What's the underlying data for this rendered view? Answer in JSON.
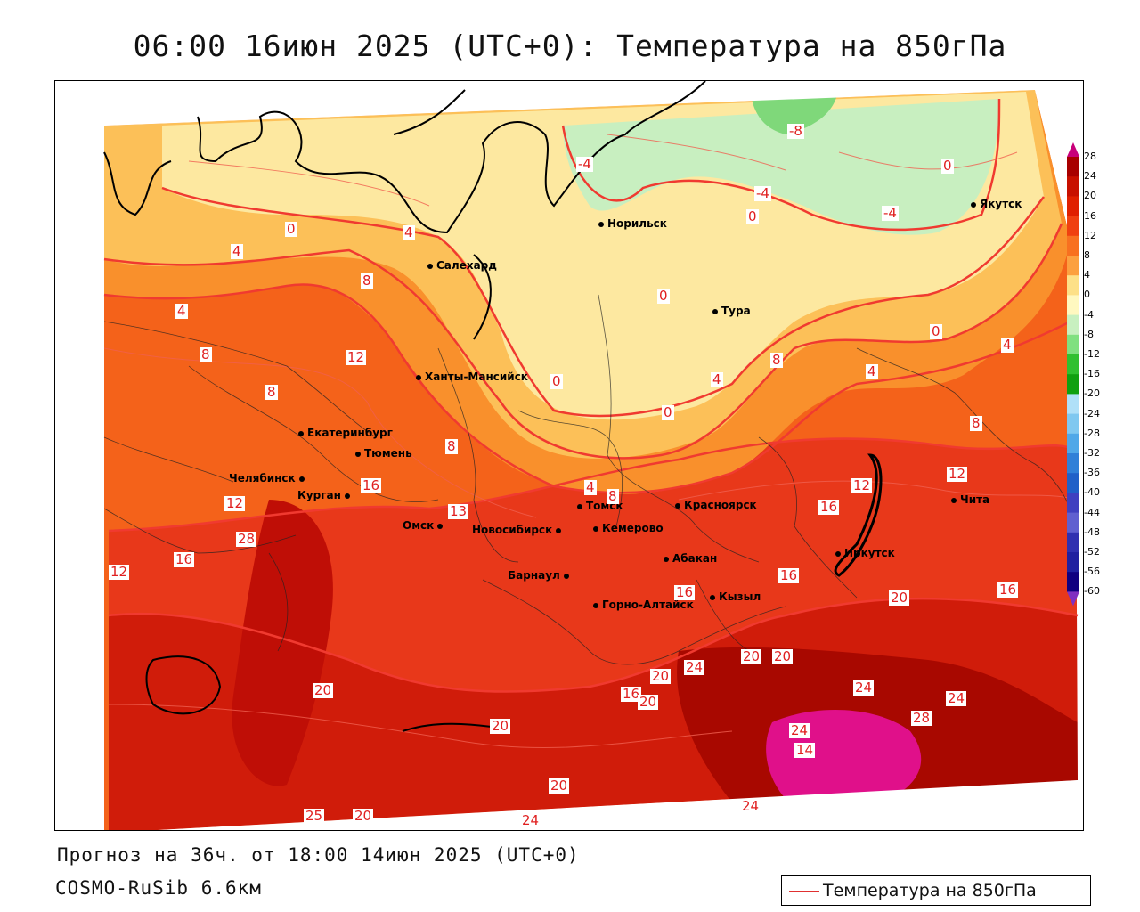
{
  "title": "06:00 16июн 2025 (UTC+0): Температура на 850гПа",
  "forecast_line": "Прогноз на 36ч. от 18:00 14июн 2025 (UTC+0)",
  "model_line": "COSMO-RuSib 6.6км",
  "legend": {
    "label": "Температура на 850гПа",
    "line_color": "#e03030"
  },
  "colorbar": {
    "labels": [
      "28",
      "24",
      "20",
      "16",
      "12",
      "8",
      "4",
      "0",
      "-4",
      "-8",
      "-12",
      "-16",
      "-20",
      "-24",
      "-28",
      "-32",
      "-36",
      "-40",
      "-44",
      "-48",
      "-52",
      "-56",
      "-60"
    ],
    "colors": [
      "#c8007a",
      "#a80000",
      "#c81000",
      "#e02000",
      "#f04010",
      "#f87020",
      "#fca040",
      "#fde088",
      "#fff8c0",
      "#c8f0c0",
      "#80e080",
      "#30c030",
      "#10a010",
      "#b0e0f8",
      "#80c8f0",
      "#50a8e8",
      "#3080d8",
      "#2060c8",
      "#4040c0",
      "#6060d0",
      "#3030b0",
      "#2020a0",
      "#100080"
    ]
  },
  "cities": [
    {
      "name": "Норильск"
    },
    {
      "name": "Якутск"
    },
    {
      "name": "Салехард"
    },
    {
      "name": "Тура"
    },
    {
      "name": "Ханты-Мансийск"
    },
    {
      "name": "Екатеринбург"
    },
    {
      "name": "Тюмень"
    },
    {
      "name": "Челябинск"
    },
    {
      "name": "Курган"
    },
    {
      "name": "Омск"
    },
    {
      "name": "Новосибирск"
    },
    {
      "name": "Томск"
    },
    {
      "name": "Кемерово"
    },
    {
      "name": "Красноярск"
    },
    {
      "name": "Барнаул"
    },
    {
      "name": "Абакан"
    },
    {
      "name": "Горно-Алтайск"
    },
    {
      "name": "Кызыл"
    },
    {
      "name": "Иркутск"
    },
    {
      "name": "Чита"
    }
  ],
  "contour_labels": [
    "-8",
    "-4",
    "-4",
    "-4",
    "0",
    "0",
    "0",
    "0",
    "0",
    "0",
    "0",
    "4",
    "4",
    "4",
    "4",
    "4",
    "4",
    "4",
    "8",
    "8",
    "8",
    "8",
    "8",
    "8",
    "8",
    "12",
    "12",
    "12",
    "12",
    "12",
    "13",
    "16",
    "16",
    "16",
    "16",
    "16",
    "16",
    "16",
    "20",
    "20",
    "20",
    "20",
    "20",
    "20",
    "20",
    "20",
    "20",
    "24",
    "24",
    "24",
    "24",
    "24",
    "24",
    "25",
    "28",
    "28",
    "14"
  ]
}
